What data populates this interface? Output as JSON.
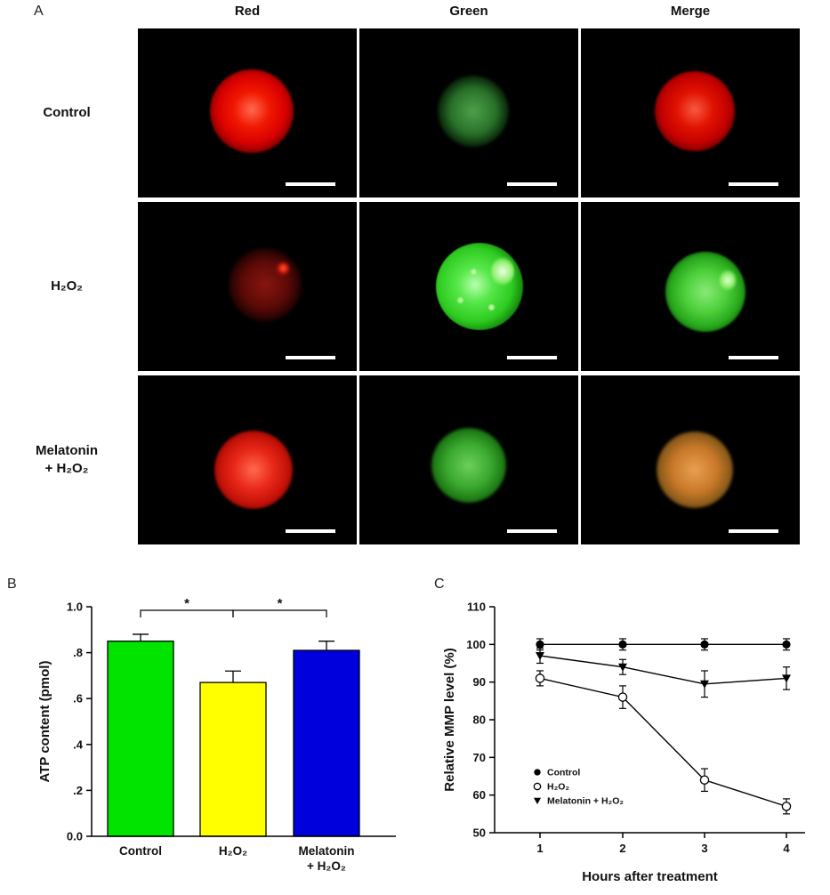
{
  "figure": {
    "panel_a_label": "A",
    "panel_b_label": "B",
    "panel_c_label": "C"
  },
  "panelA": {
    "column_headers": [
      "Red",
      "Green",
      "Merge"
    ],
    "row_labels": [
      "Control",
      "H₂O₂",
      "Melatonin + H₂O₂"
    ],
    "row_label_lines": [
      [
        "Control"
      ],
      [
        "H₂O₂"
      ],
      [
        "Melatonin",
        "+ H₂O₂"
      ]
    ]
  },
  "chart_data": [
    {
      "id": "atp-bar-chart",
      "type": "bar",
      "categories": [
        "Control",
        "H₂O₂",
        "Melatonin + H₂O₂"
      ],
      "category_lines": [
        [
          "Control"
        ],
        [
          "H₂O₂"
        ],
        [
          "Melatonin",
          "+ H₂O₂"
        ]
      ],
      "values": [
        0.85,
        0.67,
        0.81
      ],
      "errors": [
        0.03,
        0.05,
        0.04
      ],
      "bar_colors": [
        "#00e400",
        "#ffff00",
        "#0000dd"
      ],
      "ylabel": "ATP content (pmol)",
      "xlabel": "",
      "ylim": [
        0,
        1.0
      ],
      "yticks": [
        0,
        0.2,
        0.4,
        0.6,
        0.8,
        1.0
      ],
      "ytick_labels": [
        "0.0",
        ".2",
        ".4",
        ".6",
        ".8",
        "1.0"
      ],
      "significance": [
        {
          "from": 0,
          "to": 1,
          "label": "*"
        },
        {
          "from": 1,
          "to": 2,
          "label": "*"
        }
      ]
    },
    {
      "id": "mmp-line-chart",
      "type": "line",
      "x": [
        1,
        2,
        3,
        4
      ],
      "xlabel": "Hours after treatment",
      "ylabel": "Relative MMP level (%)",
      "ylim": [
        50,
        110
      ],
      "yticks": [
        50,
        60,
        70,
        80,
        90,
        100,
        110
      ],
      "series": [
        {
          "name": "Control",
          "marker": "filled-circle",
          "values": [
            100,
            100,
            100,
            100
          ],
          "errors": [
            1.5,
            1.5,
            1.5,
            1.5
          ]
        },
        {
          "name": "H₂O₂",
          "marker": "open-circle",
          "values": [
            91,
            86,
            64,
            57
          ],
          "errors": [
            2,
            3,
            3,
            2
          ]
        },
        {
          "name": "Melatonin + H₂O₂",
          "marker": "filled-triangle",
          "values": [
            97,
            94,
            89.5,
            91
          ],
          "errors": [
            2,
            2,
            3.5,
            3
          ]
        }
      ],
      "legend_position": "lower-left"
    }
  ]
}
